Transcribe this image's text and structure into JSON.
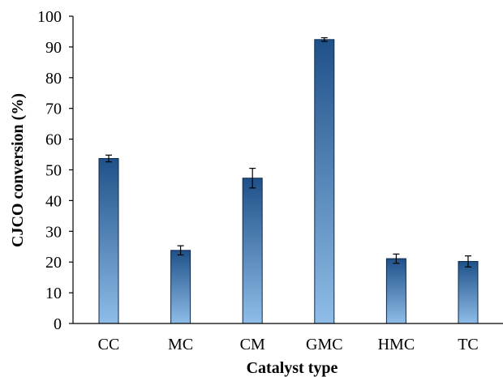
{
  "chart_data": {
    "type": "bar",
    "title": "",
    "xlabel": "Catalyst type",
    "ylabel": "CJCO conversion (%)",
    "categories": [
      "CC",
      "MC",
      "CM",
      "GMC",
      "HMC",
      "TC"
    ],
    "values": [
      53.7,
      23.8,
      47.3,
      92.4,
      21.1,
      20.2
    ],
    "errors": [
      1.1,
      1.5,
      3.2,
      0.6,
      1.5,
      1.8
    ],
    "ylim": [
      0,
      100
    ],
    "yticks": [
      0,
      10,
      20,
      30,
      40,
      50,
      60,
      70,
      80,
      90,
      100
    ],
    "grid": false,
    "legend": "none",
    "colors": {
      "bar_top": "#1f5189",
      "bar_bottom": "#8fbde8",
      "bar_edge": "#0d2a4a",
      "error_bar": "#000000",
      "axis": "#000000"
    }
  }
}
